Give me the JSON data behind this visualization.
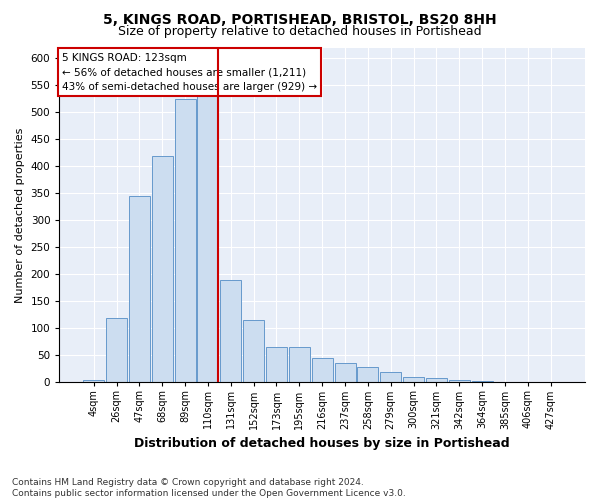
{
  "title": "5, KINGS ROAD, PORTISHEAD, BRISTOL, BS20 8HH",
  "subtitle": "Size of property relative to detached houses in Portishead",
  "xlabel": "Distribution of detached houses by size in Portishead",
  "ylabel": "Number of detached properties",
  "bar_labels": [
    "4sqm",
    "26sqm",
    "47sqm",
    "68sqm",
    "89sqm",
    "110sqm",
    "131sqm",
    "152sqm",
    "173sqm",
    "195sqm",
    "216sqm",
    "237sqm",
    "258sqm",
    "279sqm",
    "300sqm",
    "321sqm",
    "342sqm",
    "364sqm",
    "385sqm",
    "406sqm",
    "427sqm"
  ],
  "bar_values": [
    5,
    120,
    345,
    420,
    525,
    530,
    190,
    115,
    65,
    65,
    45,
    35,
    28,
    20,
    10,
    8,
    5,
    3,
    1,
    1,
    1
  ],
  "bar_color": "#ccddf0",
  "bar_edge_color": "#6699cc",
  "property_label": "5 KINGS ROAD: 123sqm",
  "annotation_line1": "← 56% of detached houses are smaller (1,211)",
  "annotation_line2": "43% of semi-detached houses are larger (929) →",
  "vline_color": "#cc0000",
  "vline_x": 5.42,
  "ylim_max": 620,
  "yticks": [
    0,
    50,
    100,
    150,
    200,
    250,
    300,
    350,
    400,
    450,
    500,
    550,
    600
  ],
  "annotation_box_facecolor": "#ffffff",
  "annotation_box_edgecolor": "#cc0000",
  "plot_bg_color": "#e8eef8",
  "fig_bg_color": "#ffffff",
  "grid_color": "#ffffff",
  "footer1": "Contains HM Land Registry data © Crown copyright and database right 2024.",
  "footer2": "Contains public sector information licensed under the Open Government Licence v3.0.",
  "title_fontsize": 10,
  "subtitle_fontsize": 9,
  "xlabel_fontsize": 9,
  "ylabel_fontsize": 8,
  "tick_fontsize": 7,
  "annotation_fontsize": 7.5,
  "footer_fontsize": 6.5
}
